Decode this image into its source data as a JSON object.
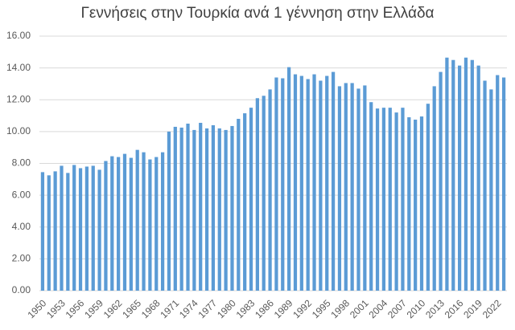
{
  "chart_data": {
    "type": "bar",
    "title": "Γεννήσεις στην Τουρκία ανά 1 γέννηση στην Ελλάδα",
    "categories": [
      "1950",
      null,
      null,
      "1953",
      null,
      null,
      "1956",
      null,
      null,
      "1959",
      null,
      null,
      "1962",
      null,
      null,
      "1965",
      null,
      null,
      "1968",
      null,
      null,
      "1971",
      null,
      null,
      "1974",
      null,
      null,
      "1977",
      null,
      null,
      "1980",
      null,
      null,
      "1983",
      null,
      null,
      "1986",
      null,
      null,
      "1989",
      null,
      null,
      "1992",
      null,
      null,
      "1995",
      null,
      null,
      "1998",
      null,
      null,
      "2001",
      null,
      null,
      "2004",
      null,
      null,
      "2007",
      null,
      null,
      "2010",
      null,
      null,
      "2013",
      null,
      null,
      "2016",
      null,
      null,
      "2019",
      null,
      null,
      "2022",
      null
    ],
    "values": [
      7.45,
      7.25,
      7.5,
      7.85,
      7.4,
      7.9,
      7.7,
      7.8,
      7.85,
      7.6,
      8.15,
      8.45,
      8.4,
      8.6,
      8.35,
      8.85,
      8.7,
      8.25,
      8.4,
      8.7,
      10.0,
      10.3,
      10.25,
      10.5,
      10.1,
      10.55,
      10.2,
      10.4,
      10.2,
      10.1,
      10.35,
      10.8,
      11.15,
      11.5,
      12.1,
      12.25,
      12.65,
      13.4,
      13.35,
      14.05,
      13.6,
      13.5,
      13.3,
      13.6,
      13.2,
      13.5,
      13.75,
      12.85,
      13.05,
      13.05,
      12.7,
      12.9,
      11.85,
      11.45,
      11.5,
      11.5,
      11.2,
      11.5,
      10.9,
      10.75,
      10.95,
      11.75,
      12.85,
      13.75,
      14.65,
      14.5,
      14.15,
      14.65,
      14.5,
      14.15,
      13.2,
      12.65,
      13.55,
      13.4
    ],
    "color": "#5b9bd5",
    "ylim": [
      0,
      16
    ],
    "yticks": [
      {
        "value": 0,
        "label": "0.00"
      },
      {
        "value": 2,
        "label": "2.00"
      },
      {
        "value": 4,
        "label": "4.00"
      },
      {
        "value": 6,
        "label": "6.00"
      },
      {
        "value": 8,
        "label": "8.00"
      },
      {
        "value": 10,
        "label": "10.00"
      },
      {
        "value": 12,
        "label": "12.00"
      },
      {
        "value": 14,
        "label": "14.00"
      },
      {
        "value": 16,
        "label": "16.00"
      }
    ],
    "grid": true
  }
}
